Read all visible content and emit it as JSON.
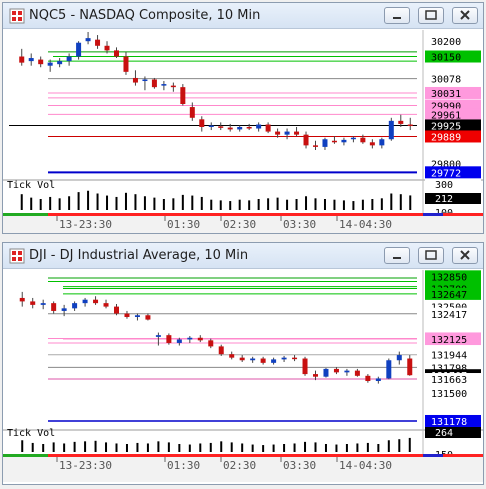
{
  "windows": [
    {
      "title": "NQC5 - NASDAQ Composite, 10 Min",
      "subpanel_label": "Tick Vol",
      "time_labels": [
        "13-23:30",
        "01:30",
        "02:30",
        "03:30",
        "14-04:30"
      ],
      "price_tags": [
        {
          "text": "30200",
          "bg": "#ffffff",
          "fg": "#000000"
        },
        {
          "text": "30150",
          "bg": "#00c000",
          "fg": "#000000"
        },
        {
          "text": "30078",
          "bg": "#ffffff",
          "fg": "#000000"
        },
        {
          "text": "30031",
          "bg": "#ff99dd",
          "fg": "#000000"
        },
        {
          "text": "29990",
          "bg": "#ff99dd",
          "fg": "#000000"
        },
        {
          "text": "29961",
          "bg": "#ff99dd",
          "fg": "#000000"
        },
        {
          "text": "29925",
          "bg": "#000000",
          "fg": "#ffffff"
        },
        {
          "text": "29889",
          "bg": "#ee0000",
          "fg": "#ffffff"
        },
        {
          "text": "29800",
          "bg": "#ffffff",
          "fg": "#000000"
        },
        {
          "text": "29772",
          "bg": "#0000ee",
          "fg": "#ffffff"
        }
      ],
      "vol_tags": [
        {
          "text": "300",
          "bg": "#ffffff",
          "fg": "#000000"
        },
        {
          "text": "212",
          "bg": "#000000",
          "fg": "#ffffff"
        },
        {
          "text": "100",
          "bg": "#ffffff",
          "fg": "#000000"
        }
      ]
    },
    {
      "title": "DJI - DJ Industrial Average, 10 Min",
      "subpanel_label": "Tick Vol",
      "time_labels": [
        "13-23:30",
        "01:30",
        "02:30",
        "03:30",
        "14-04:30"
      ],
      "price_tags": [
        {
          "text": "132850",
          "bg": "#00c000",
          "fg": "#000000"
        },
        {
          "text": "132731",
          "bg": "#00c000",
          "fg": "#000000"
        },
        {
          "text": "132709",
          "bg": "#00c000",
          "fg": "#000000"
        },
        {
          "text": "132647",
          "bg": "#00c000",
          "fg": "#000000"
        },
        {
          "text": "132500",
          "bg": "#ffffff",
          "fg": "#000000"
        },
        {
          "text": "132417",
          "bg": "#ffffff",
          "fg": "#000000"
        },
        {
          "text": "132132",
          "bg": "#ff99dd",
          "fg": "#000000"
        },
        {
          "text": "132125",
          "bg": "#ff99dd",
          "fg": "#000000"
        },
        {
          "text": "131944",
          "bg": "#ffffff",
          "fg": "#000000"
        },
        {
          "text": "131798",
          "bg": "#ffffff",
          "fg": "#000000"
        },
        {
          "text": "131707",
          "bg": "#000000",
          "fg": "#ffffff"
        },
        {
          "text": "131663",
          "bg": "#ffffff",
          "fg": "#000000"
        },
        {
          "text": "131500",
          "bg": "#ffffff",
          "fg": "#000000"
        },
        {
          "text": "131178",
          "bg": "#0000ee",
          "fg": "#ffffff"
        }
      ],
      "vol_tags": [
        {
          "text": "264",
          "bg": "#000000",
          "fg": "#ffffff"
        },
        {
          "text": "150",
          "bg": "#ffffff",
          "fg": "#000000"
        }
      ]
    }
  ],
  "chart_data": [
    {
      "type": "candlestick",
      "title": "NQC5 - NASDAQ Composite, 10 Min",
      "y_range": [
        29760,
        30230
      ],
      "candles": [
        {
          "o": 30150,
          "h": 30175,
          "l": 30120,
          "c": 30130
        },
        {
          "o": 30135,
          "h": 30160,
          "l": 30120,
          "c": 30145
        },
        {
          "o": 30140,
          "h": 30150,
          "l": 30115,
          "c": 30125
        },
        {
          "o": 30120,
          "h": 30140,
          "l": 30100,
          "c": 30130
        },
        {
          "o": 30125,
          "h": 30145,
          "l": 30115,
          "c": 30135
        },
        {
          "o": 30135,
          "h": 30160,
          "l": 30120,
          "c": 30150
        },
        {
          "o": 30150,
          "h": 30200,
          "l": 30140,
          "c": 30195
        },
        {
          "o": 30200,
          "h": 30230,
          "l": 30190,
          "c": 30210
        },
        {
          "o": 30205,
          "h": 30220,
          "l": 30175,
          "c": 30185
        },
        {
          "o": 30185,
          "h": 30200,
          "l": 30160,
          "c": 30170
        },
        {
          "o": 30170,
          "h": 30180,
          "l": 30145,
          "c": 30150
        },
        {
          "o": 30150,
          "h": 30165,
          "l": 30090,
          "c": 30100
        },
        {
          "o": 30080,
          "h": 30105,
          "l": 30055,
          "c": 30065
        },
        {
          "o": 30070,
          "h": 30085,
          "l": 30040,
          "c": 30075
        },
        {
          "o": 30075,
          "h": 30080,
          "l": 30045,
          "c": 30050
        },
        {
          "o": 30055,
          "h": 30070,
          "l": 30040,
          "c": 30060
        },
        {
          "o": 30055,
          "h": 30065,
          "l": 30035,
          "c": 30050
        },
        {
          "o": 30050,
          "h": 30060,
          "l": 29990,
          "c": 29995
        },
        {
          "o": 29985,
          "h": 30000,
          "l": 29940,
          "c": 29950
        },
        {
          "o": 29945,
          "h": 29955,
          "l": 29905,
          "c": 29920
        },
        {
          "o": 29920,
          "h": 29935,
          "l": 29910,
          "c": 29925
        },
        {
          "o": 29922,
          "h": 29935,
          "l": 29910,
          "c": 29918
        },
        {
          "o": 29918,
          "h": 29930,
          "l": 29905,
          "c": 29912
        },
        {
          "o": 29912,
          "h": 29925,
          "l": 29905,
          "c": 29920
        },
        {
          "o": 29920,
          "h": 29930,
          "l": 29910,
          "c": 29915
        },
        {
          "o": 29915,
          "h": 29935,
          "l": 29905,
          "c": 29928
        },
        {
          "o": 29928,
          "h": 29935,
          "l": 29900,
          "c": 29905
        },
        {
          "o": 29905,
          "h": 29915,
          "l": 29885,
          "c": 29895
        },
        {
          "o": 29895,
          "h": 29915,
          "l": 29880,
          "c": 29905
        },
        {
          "o": 29905,
          "h": 29920,
          "l": 29890,
          "c": 29895
        },
        {
          "o": 29895,
          "h": 29905,
          "l": 29850,
          "c": 29860
        },
        {
          "o": 29860,
          "h": 29875,
          "l": 29845,
          "c": 29855
        },
        {
          "o": 29855,
          "h": 29885,
          "l": 29845,
          "c": 29880
        },
        {
          "o": 29875,
          "h": 29890,
          "l": 29865,
          "c": 29870
        },
        {
          "o": 29870,
          "h": 29885,
          "l": 29860,
          "c": 29878
        },
        {
          "o": 29880,
          "h": 29890,
          "l": 29870,
          "c": 29885
        },
        {
          "o": 29885,
          "h": 29895,
          "l": 29865,
          "c": 29870
        },
        {
          "o": 29870,
          "h": 29880,
          "l": 29850,
          "c": 29860
        },
        {
          "o": 29860,
          "h": 29885,
          "l": 29850,
          "c": 29880
        },
        {
          "o": 29880,
          "h": 29950,
          "l": 29875,
          "c": 29940
        },
        {
          "o": 29940,
          "h": 29960,
          "l": 29920,
          "c": 29930
        },
        {
          "o": 29928,
          "h": 29950,
          "l": 29910,
          "c": 29925
        }
      ],
      "volume": [
        230,
        180,
        160,
        190,
        170,
        200,
        260,
        280,
        240,
        210,
        190,
        250,
        230,
        200,
        180,
        160,
        170,
        220,
        210,
        190,
        150,
        140,
        130,
        150,
        140,
        160,
        170,
        180,
        150,
        160,
        200,
        170,
        160,
        150,
        140,
        130,
        150,
        160,
        170,
        240,
        230,
        212
      ],
      "vol_range": [
        0,
        320
      ]
    },
    {
      "type": "candlestick",
      "title": "DJI - DJ Industrial Average, 10 Min",
      "y_range": [
        131120,
        132900
      ],
      "candles": [
        {
          "o": 132600,
          "h": 132670,
          "l": 132500,
          "c": 132560
        },
        {
          "o": 132560,
          "h": 132600,
          "l": 132480,
          "c": 132520
        },
        {
          "o": 132520,
          "h": 132580,
          "l": 132470,
          "c": 132540
        },
        {
          "o": 132540,
          "h": 132560,
          "l": 132420,
          "c": 132450
        },
        {
          "o": 132450,
          "h": 132520,
          "l": 132390,
          "c": 132480
        },
        {
          "o": 132480,
          "h": 132560,
          "l": 132450,
          "c": 132540
        },
        {
          "o": 132540,
          "h": 132600,
          "l": 132500,
          "c": 132580
        },
        {
          "o": 132580,
          "h": 132620,
          "l": 132520,
          "c": 132540
        },
        {
          "o": 132540,
          "h": 132580,
          "l": 132480,
          "c": 132500
        },
        {
          "o": 132500,
          "h": 132530,
          "l": 132400,
          "c": 132420
        },
        {
          "o": 132420,
          "h": 132450,
          "l": 132360,
          "c": 132380
        },
        {
          "o": 132380,
          "h": 132420,
          "l": 132340,
          "c": 132400
        },
        {
          "o": 132400,
          "h": 132420,
          "l": 132340,
          "c": 132350
        },
        {
          "o": 132150,
          "h": 132200,
          "l": 132050,
          "c": 132170
        },
        {
          "o": 132170,
          "h": 132190,
          "l": 132060,
          "c": 132080
        },
        {
          "o": 132080,
          "h": 132140,
          "l": 132050,
          "c": 132120
        },
        {
          "o": 132120,
          "h": 132160,
          "l": 132080,
          "c": 132140
        },
        {
          "o": 132140,
          "h": 132170,
          "l": 132090,
          "c": 132110
        },
        {
          "o": 132110,
          "h": 132130,
          "l": 132020,
          "c": 132040
        },
        {
          "o": 132040,
          "h": 132060,
          "l": 131930,
          "c": 131950
        },
        {
          "o": 131950,
          "h": 131980,
          "l": 131890,
          "c": 131910
        },
        {
          "o": 131910,
          "h": 131940,
          "l": 131860,
          "c": 131880
        },
        {
          "o": 131880,
          "h": 131920,
          "l": 131850,
          "c": 131900
        },
        {
          "o": 131900,
          "h": 131920,
          "l": 131830,
          "c": 131850
        },
        {
          "o": 131850,
          "h": 131910,
          "l": 131830,
          "c": 131890
        },
        {
          "o": 131890,
          "h": 131930,
          "l": 131860,
          "c": 131910
        },
        {
          "o": 131910,
          "h": 131940,
          "l": 131870,
          "c": 131900
        },
        {
          "o": 131900,
          "h": 131920,
          "l": 131700,
          "c": 131720
        },
        {
          "o": 131720,
          "h": 131760,
          "l": 131650,
          "c": 131690
        },
        {
          "o": 131690,
          "h": 131790,
          "l": 131680,
          "c": 131780
        },
        {
          "o": 131780,
          "h": 131800,
          "l": 131720,
          "c": 131740
        },
        {
          "o": 131740,
          "h": 131780,
          "l": 131700,
          "c": 131760
        },
        {
          "o": 131760,
          "h": 131780,
          "l": 131690,
          "c": 131700
        },
        {
          "o": 131700,
          "h": 131720,
          "l": 131620,
          "c": 131640
        },
        {
          "o": 131640,
          "h": 131690,
          "l": 131610,
          "c": 131670
        },
        {
          "o": 131670,
          "h": 131900,
          "l": 131660,
          "c": 131880
        },
        {
          "o": 131880,
          "h": 131980,
          "l": 131830,
          "c": 131940
        },
        {
          "o": 131900,
          "h": 131940,
          "l": 131700,
          "c": 131707
        }
      ],
      "volume": [
        220,
        170,
        150,
        180,
        160,
        190,
        200,
        210,
        180,
        160,
        150,
        170,
        160,
        200,
        180,
        150,
        140,
        160,
        170,
        200,
        180,
        160,
        140,
        130,
        140,
        150,
        160,
        190,
        180,
        150,
        140,
        150,
        160,
        170,
        150,
        220,
        240,
        264
      ],
      "vol_range": [
        0,
        300
      ]
    }
  ]
}
